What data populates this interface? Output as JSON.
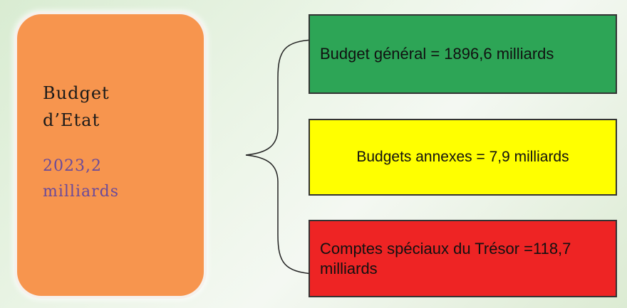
{
  "main": {
    "title": "Budget d’Etat",
    "amount": "2023,2 milliards"
  },
  "parts": [
    {
      "label": "Budget général = 1896,6 milliards"
    },
    {
      "label": "Budgets annexes = 7,9 milliards"
    },
    {
      "label": "Comptes spéciaux du Trésor =118,7 milliards"
    }
  ]
}
